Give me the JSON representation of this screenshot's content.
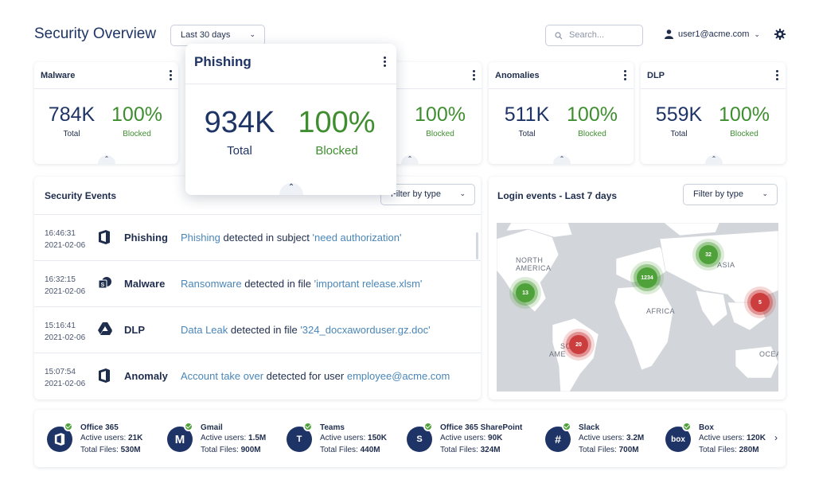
{
  "header": {
    "title": "Security Overview",
    "date_range": "Last 30 days",
    "search_placeholder": "Search...",
    "user": "user1@acme.com"
  },
  "metrics": [
    {
      "title": "Malware",
      "total": "784K",
      "total_label": "Total",
      "pct": "100%",
      "pct_label": "Blocked"
    },
    {
      "title": "Phishing",
      "total": "934K",
      "total_label": "Total",
      "pct": "100%",
      "pct_label": "Blocked"
    },
    {
      "title": "",
      "total": "",
      "total_label": "",
      "pct": "100%",
      "pct_label": "Blocked"
    },
    {
      "title": "Anomalies",
      "total": "511K",
      "total_label": "Total",
      "pct": "100%",
      "pct_label": "Blocked"
    },
    {
      "title": "DLP",
      "total": "559K",
      "total_label": "Total",
      "pct": "100%",
      "pct_label": "Blocked"
    }
  ],
  "popup": {
    "title": "Phishing",
    "total": "934K",
    "total_label": "Total",
    "pct": "100%",
    "pct_label": "Blocked"
  },
  "events": {
    "title": "Security Events",
    "filter_label": "Filter by type",
    "rows": [
      {
        "time": "16:46:31",
        "date": "2021-02-06",
        "icon": "office-icon",
        "type": "Phishing",
        "highlight": "Phishing",
        "middle": " detected in subject ",
        "target": "'need authorization'"
      },
      {
        "time": "16:32:15",
        "date": "2021-02-06",
        "icon": "sharepoint-icon",
        "type": "Malware",
        "highlight": "Ransomware",
        "middle": " detected in file ",
        "target": "'important release.xlsm'"
      },
      {
        "time": "15:16:41",
        "date": "2021-02-06",
        "icon": "drive-icon",
        "type": "DLP",
        "highlight": "Data Leak",
        "middle": " detected in file ",
        "target": "'324_docxaworduser.gz.doc'"
      },
      {
        "time": "15:07:54",
        "date": "2021-02-06",
        "icon": "office-icon",
        "type": "Anomaly",
        "highlight": "Account take over",
        "middle": " detected for user ",
        "target": "employee@acme.com"
      }
    ]
  },
  "login": {
    "title": "Login events - Last 7 days",
    "filter_label": "Filter by type",
    "map_labels": {
      "north_america": "NORTH\nAMERICA",
      "asia": "ASIA",
      "africa": "AFRICA",
      "south_america_a": "SO",
      "south_america_b": "AME",
      "ocean": "OCEA"
    },
    "clusters": [
      {
        "label": "13",
        "status": "ok"
      },
      {
        "label": "1234",
        "status": "ok"
      },
      {
        "label": "32",
        "status": "ok"
      },
      {
        "label": "5",
        "status": "alert"
      },
      {
        "label": "20",
        "status": "alert"
      }
    ]
  },
  "apps": [
    {
      "name": "Office 365",
      "users_label": "Active users: ",
      "users": "21K",
      "files_label": "Total Files: ",
      "files": "530M",
      "icon": "office-icon"
    },
    {
      "name": "Gmail",
      "users_label": "Active users: ",
      "users": "1.5M",
      "files_label": "Total Files: ",
      "files": "900M",
      "icon": "gmail-icon"
    },
    {
      "name": "Teams",
      "users_label": "Active users: ",
      "users": "150K",
      "files_label": "Total Files: ",
      "files": "440M",
      "icon": "teams-icon"
    },
    {
      "name": "Office 365 SharePoint",
      "users_label": "Active users: ",
      "users": "90K",
      "files_label": "Total Files: ",
      "files": "324M",
      "icon": "sharepoint-icon"
    },
    {
      "name": "Slack",
      "users_label": "Active users: ",
      "users": "3.2M",
      "files_label": "Total Files: ",
      "files": "700M",
      "icon": "slack-icon"
    },
    {
      "name": "Box",
      "users_label": "Active users: ",
      "users": "120K",
      "files_label": "Total Files: ",
      "files": "280M",
      "icon": "box-icon"
    }
  ],
  "colors": {
    "navy": "#1f3466",
    "green": "#3e8e2f",
    "link": "#4a86b8",
    "alert": "#cc3d3d",
    "ok": "#4fa23a"
  }
}
